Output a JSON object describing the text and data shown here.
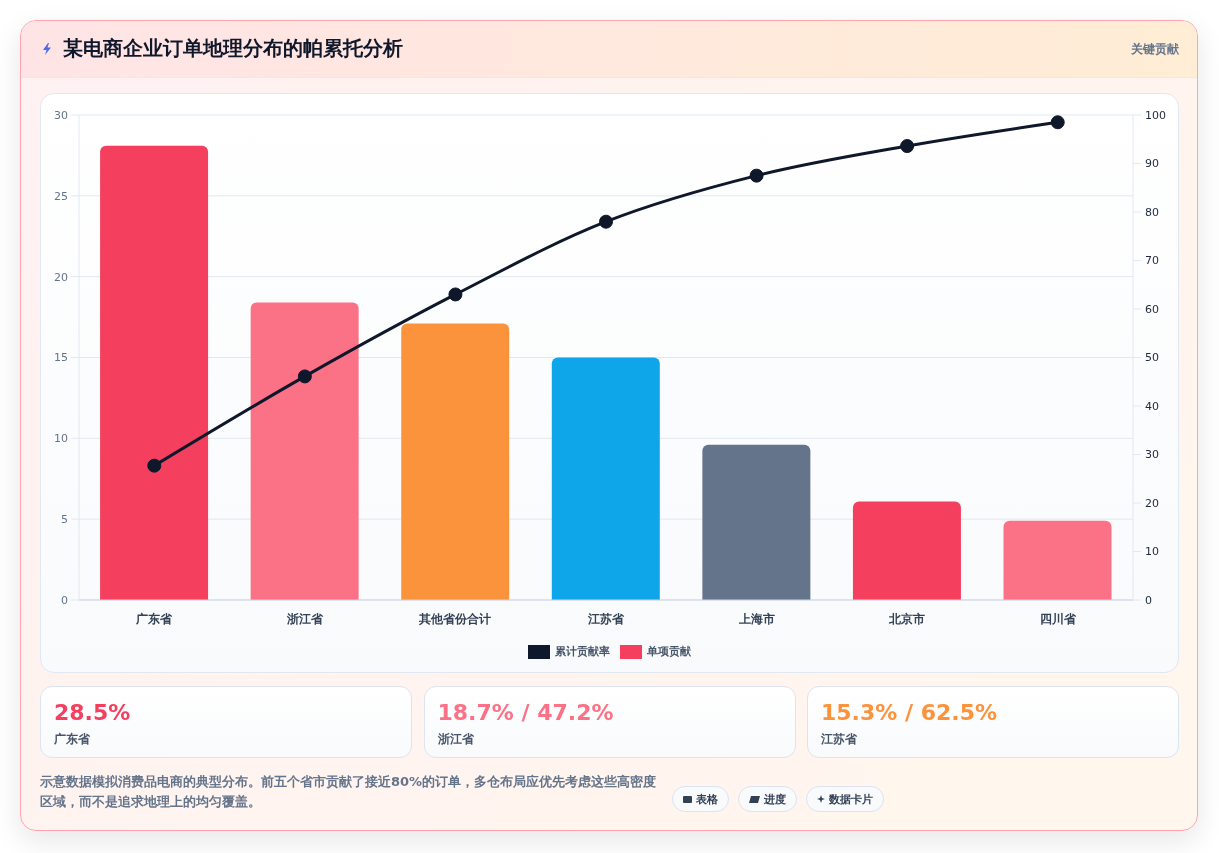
{
  "chart_data": {
    "type": "bar",
    "title": "某电商企业订单地理分布的帕累托分析",
    "categories": [
      "广东省",
      "浙江省",
      "其他省份合计",
      "江苏省",
      "上海市",
      "北京市",
      "四川省"
    ],
    "series": [
      {
        "name": "累计贡献率",
        "type": "line",
        "axis": "y2",
        "color": "#0f172a",
        "values": [
          27.7,
          46.1,
          63.0,
          78.0,
          87.5,
          93.6,
          98.5
        ]
      },
      {
        "name": "单项贡献",
        "colors": [
          "#f43f5e",
          "#fb7185",
          "#fb923c",
          "#0ea5e9",
          "#64748b",
          "#f43f5e",
          "#fb7185"
        ],
        "values": [
          28.1,
          18.4,
          17.1,
          15.0,
          9.6,
          6.1,
          4.9
        ]
      }
    ],
    "ylim": [
      0,
      30
    ],
    "yticks": [
      0,
      5,
      10,
      15,
      20,
      25,
      30
    ],
    "y2lim": [
      0,
      100
    ],
    "y2ticks": [
      0,
      10,
      20,
      30,
      40,
      50,
      60,
      70,
      80,
      90,
      100
    ],
    "grid": "y",
    "legend": "bottom",
    "marker": "circle",
    "line_style": "solid",
    "annotations": [
      "关键贡献",
      "28.5%",
      "广东省",
      "18.7% / 47.2%",
      "浙江省",
      "15.3% / 62.5%",
      "江苏省",
      "示意数据模拟消费品电商的典型分布。前五个省市贡献了接近80%的订单，多仓布局应优先考虑这些高密度区域，而不是追求地理上的均匀覆盖。",
      "表格",
      "进度",
      "数据卡片"
    ]
  }
}
